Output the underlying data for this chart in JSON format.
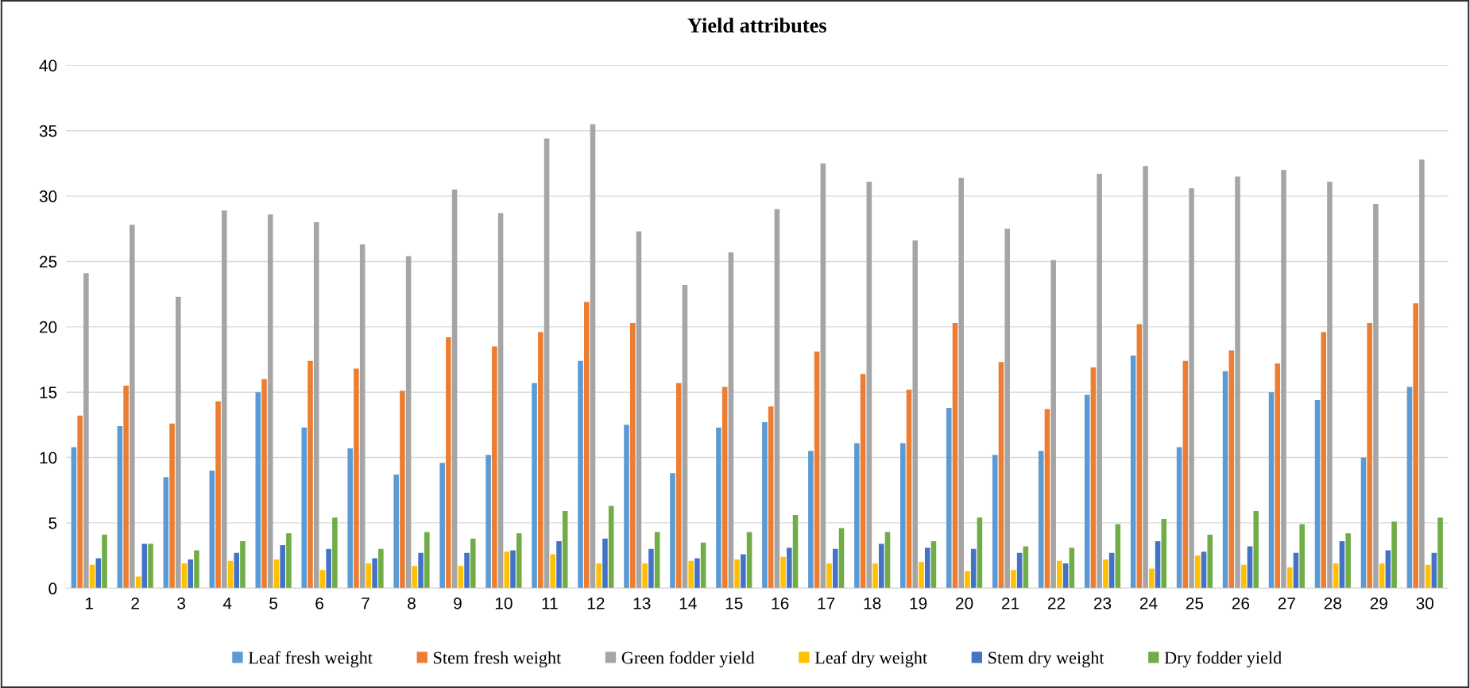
{
  "chart_data": {
    "type": "bar",
    "title": "Yield attributes",
    "categories": [
      "1",
      "2",
      "3",
      "4",
      "5",
      "6",
      "7",
      "8",
      "9",
      "10",
      "11",
      "12",
      "13",
      "14",
      "15",
      "16",
      "17",
      "18",
      "19",
      "20",
      "21",
      "22",
      "23",
      "24",
      "25",
      "26",
      "27",
      "28",
      "29",
      "30"
    ],
    "series": [
      {
        "name": "Leaf fresh weight",
        "color": "#5b9bd5",
        "values": [
          10.8,
          12.4,
          8.5,
          9.0,
          15.0,
          12.3,
          10.7,
          8.7,
          9.6,
          10.2,
          15.7,
          17.4,
          12.5,
          8.8,
          12.3,
          12.7,
          10.5,
          11.1,
          11.1,
          13.8,
          10.2,
          10.5,
          14.8,
          17.8,
          10.8,
          16.6,
          15.0,
          14.4,
          10.0,
          15.4
        ]
      },
      {
        "name": "Stem fresh weight",
        "color": "#ed7d31",
        "values": [
          13.2,
          15.5,
          12.6,
          14.3,
          16.0,
          17.4,
          16.8,
          15.1,
          19.2,
          18.5,
          19.6,
          21.9,
          20.3,
          15.7,
          15.4,
          13.9,
          18.1,
          16.4,
          15.2,
          20.3,
          17.3,
          13.7,
          16.9,
          20.2,
          17.4,
          18.2,
          17.2,
          19.6,
          20.3,
          21.8
        ]
      },
      {
        "name": "Green fodder yield",
        "color": "#a5a5a5",
        "values": [
          24.1,
          27.8,
          22.3,
          28.9,
          28.6,
          28.0,
          26.3,
          25.4,
          30.5,
          28.7,
          34.4,
          35.5,
          27.3,
          23.2,
          25.7,
          29.0,
          32.5,
          31.1,
          26.6,
          31.4,
          27.5,
          25.1,
          31.7,
          32.3,
          30.6,
          31.5,
          32.0,
          31.1,
          29.4,
          32.8
        ]
      },
      {
        "name": "Leaf dry weight",
        "color": "#ffc000",
        "values": [
          1.8,
          0.9,
          1.9,
          2.1,
          2.2,
          1.4,
          1.9,
          1.7,
          1.7,
          2.8,
          2.6,
          1.9,
          1.9,
          2.1,
          2.2,
          2.4,
          1.9,
          1.9,
          2.0,
          1.3,
          1.4,
          2.1,
          2.2,
          1.5,
          2.5,
          1.8,
          1.6,
          1.9,
          1.9,
          1.8
        ]
      },
      {
        "name": "Stem dry weight",
        "color": "#4472c4",
        "values": [
          2.3,
          3.4,
          2.2,
          2.7,
          3.3,
          3.0,
          2.3,
          2.7,
          2.7,
          2.9,
          3.6,
          3.8,
          3.0,
          2.3,
          2.6,
          3.1,
          3.0,
          3.4,
          3.1,
          3.0,
          2.7,
          1.9,
          2.7,
          3.6,
          2.8,
          3.2,
          2.7,
          3.6,
          2.9,
          2.7
        ]
      },
      {
        "name": "Dry fodder yield",
        "color": "#70ad47",
        "values": [
          4.1,
          3.4,
          2.9,
          3.6,
          4.2,
          5.4,
          3.0,
          4.3,
          3.8,
          4.2,
          5.9,
          6.3,
          4.3,
          3.5,
          4.3,
          5.6,
          4.6,
          4.3,
          3.6,
          5.4,
          3.2,
          3.1,
          4.9,
          5.3,
          4.1,
          5.9,
          4.9,
          4.2,
          5.1,
          5.4
        ]
      }
    ],
    "ylim": [
      0,
      40
    ],
    "yticks": [
      0,
      5,
      10,
      15,
      20,
      25,
      30,
      35,
      40
    ],
    "grid": "y",
    "legend": "bottom"
  }
}
